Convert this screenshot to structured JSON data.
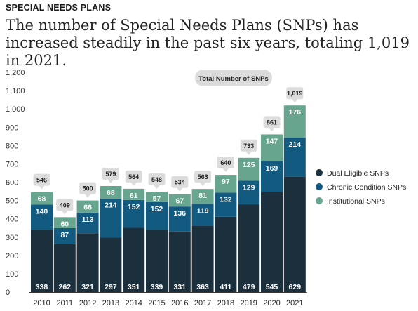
{
  "eyebrow": "SPECIAL NEEDS PLANS",
  "headline": "The number of Special Needs Plans (SNPs) has increased steadily in the past six years, totaling 1,019 in 2021.",
  "colors": {
    "dual": "#1c2f3d",
    "chronic": "#135a80",
    "institutional": "#68a58f",
    "callout": "#dcdcdc",
    "axis": "#333333"
  },
  "chart_data": {
    "type": "bar",
    "stacked": true,
    "categories": [
      "2010",
      "2011",
      "2012",
      "2013",
      "2014",
      "2015",
      "2016",
      "2017",
      "2018",
      "2019",
      "2020",
      "2021"
    ],
    "series": [
      {
        "name": "Dual Eligible SNPs",
        "color_key": "dual",
        "values": [
          338,
          262,
          321,
          297,
          351,
          339,
          331,
          363,
          411,
          479,
          545,
          629
        ]
      },
      {
        "name": "Chronic Condition SNPs",
        "color_key": "chronic",
        "values": [
          140,
          87,
          113,
          214,
          152,
          152,
          136,
          119,
          132,
          129,
          169,
          214
        ]
      },
      {
        "name": "Institutional SNPs",
        "color_key": "institutional",
        "values": [
          68,
          60,
          66,
          68,
          61,
          57,
          67,
          81,
          97,
          125,
          147,
          176
        ]
      }
    ],
    "totals": [
      546,
      409,
      500,
      579,
      564,
      548,
      534,
      563,
      640,
      733,
      861,
      1019
    ],
    "total_labels": [
      "546",
      "409",
      "500",
      "579",
      "564",
      "548",
      "534",
      "563",
      "640",
      "733",
      "861",
      "1,019"
    ],
    "totals_pill": "Total Number of SNPs",
    "y_ticks": [
      "0",
      "100",
      "200",
      "300",
      "400",
      "500",
      "600",
      "700",
      "800",
      "900",
      "1,000",
      "1,100",
      "1,200"
    ],
    "ylim": [
      0,
      1200
    ],
    "legend_position": "right"
  }
}
